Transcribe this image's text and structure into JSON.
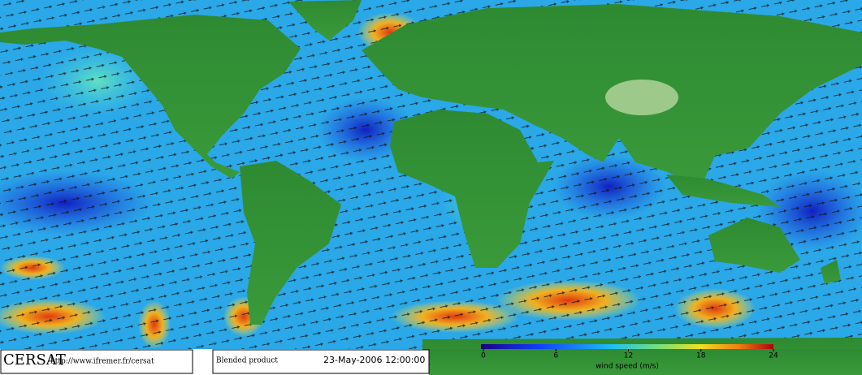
{
  "logo": "CERSAT",
  "url": "http://www.ifremer.fr/cersat",
  "product": "Blended product",
  "date": "23-May-2006 12:00:00",
  "colorbar": {
    "label": "wind speed (m/s)",
    "range": [
      0,
      24
    ],
    "ticks": [
      0,
      6,
      12,
      18,
      24
    ]
  }
}
